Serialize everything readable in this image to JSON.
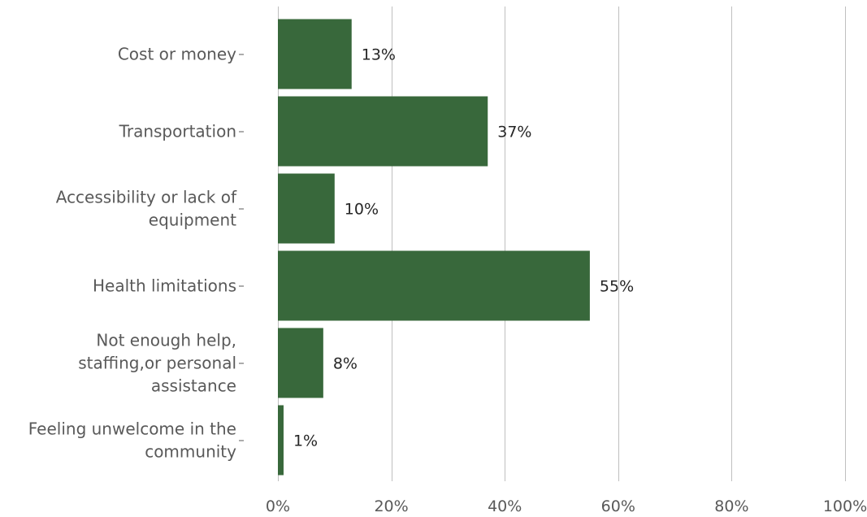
{
  "chart_data": {
    "type": "bar",
    "orientation": "horizontal",
    "categories": [
      "Cost or money",
      "Transportation",
      "Accessibility or lack of equipment",
      "Health limitations",
      "Not enough help, staffing,or personal assistance",
      "Feeling unwelcome in the community"
    ],
    "category_lines": [
      [
        "Cost or money"
      ],
      [
        "Transportation"
      ],
      [
        "Accessibility or lack of",
        "equipment"
      ],
      [
        "Health limitations"
      ],
      [
        "Not enough help,",
        "staffing,or personal",
        "assistance"
      ],
      [
        "Feeling unwelcome in the",
        "community"
      ]
    ],
    "values": [
      13,
      37,
      10,
      55,
      8,
      1
    ],
    "data_labels": [
      "13%",
      "37%",
      "10%",
      "55%",
      "8%",
      "1%"
    ],
    "x_ticks": [
      0,
      20,
      40,
      60,
      80,
      100
    ],
    "x_tick_labels": [
      "0%",
      "20%",
      "40%",
      "60%",
      "80%",
      "100%"
    ],
    "xlim": [
      0,
      100
    ],
    "unit": "%",
    "grid": true,
    "legend": false,
    "title": "",
    "xlabel": "",
    "ylabel": ""
  },
  "colors": {
    "bar": "#38683b",
    "grid": "#bfbfbf",
    "axis_text": "#595959",
    "data_label": "#262626"
  }
}
